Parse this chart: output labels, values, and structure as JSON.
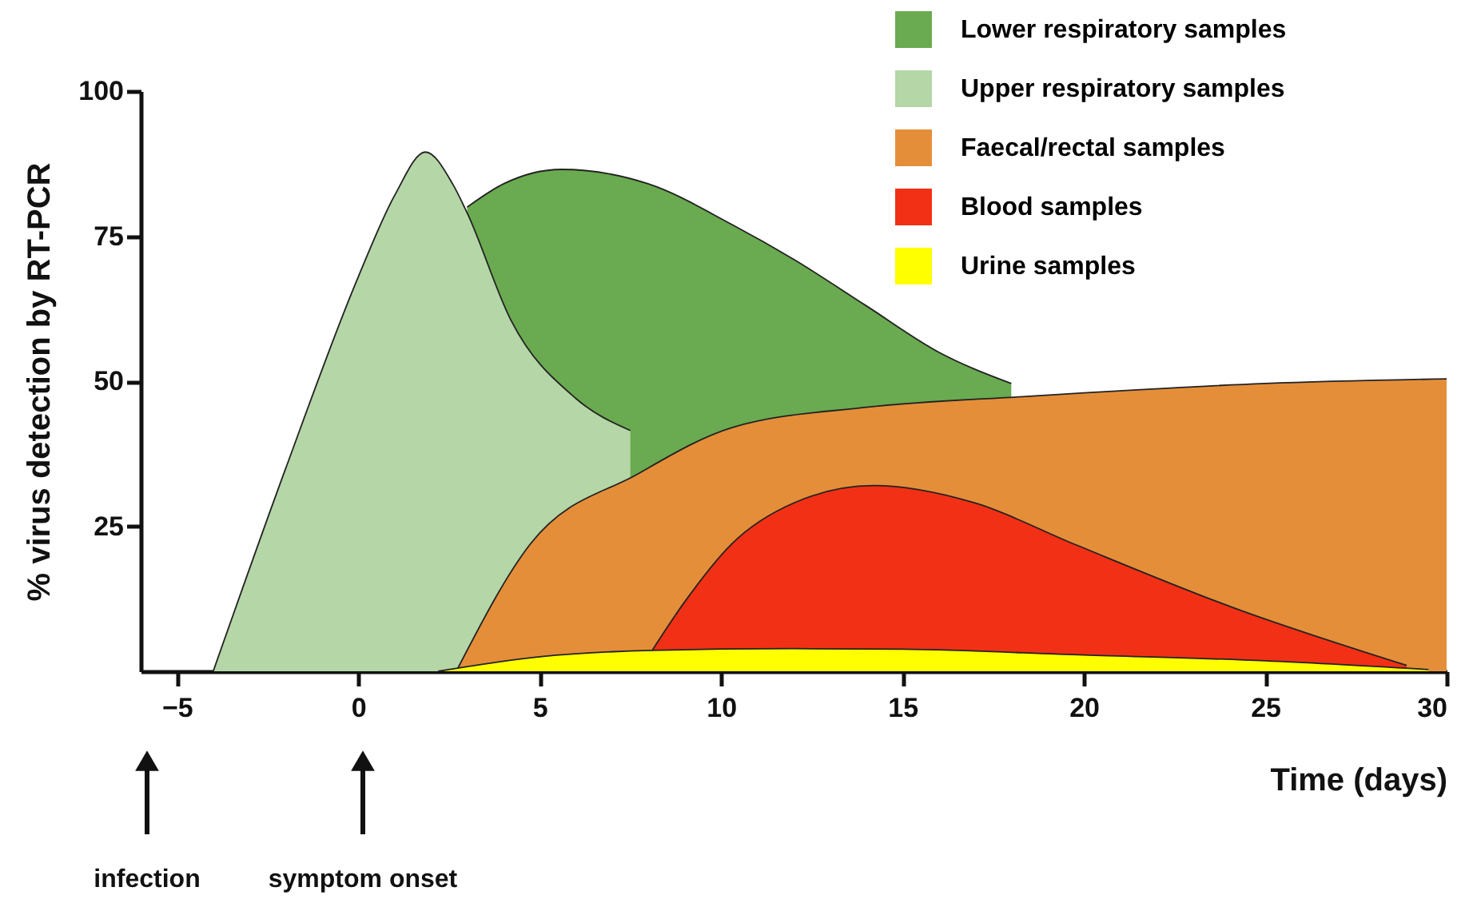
{
  "chart_data": {
    "type": "area",
    "ylabel": "% virus detection by RT-PCR",
    "xlabel": "Time (days)",
    "xlim": [
      -6,
      30
    ],
    "xticks": [
      -5,
      0,
      5,
      10,
      15,
      20,
      25,
      30
    ],
    "ylim": [
      0,
      100
    ],
    "yticks": [
      25,
      50,
      75,
      100
    ],
    "grid": false,
    "legend": "top right",
    "series": [
      {
        "name": "Lower respiratory samples",
        "color": "#6aaa50",
        "x": [
          3,
          4,
          5.6,
          8,
          10.3,
          12,
          14,
          16,
          18
        ],
        "values": [
          80,
          84,
          86.5,
          84,
          77,
          71,
          63,
          55,
          49.6
        ]
      },
      {
        "name": "Upper respiratory samples",
        "color": "#b5d6a7",
        "x": [
          -4,
          -2,
          0,
          1,
          1.85,
          2.6,
          3,
          4.2,
          6,
          7.5
        ],
        "values": [
          0,
          35,
          68,
          82,
          89.5,
          84,
          79,
          60.6,
          47,
          41.5
        ]
      },
      {
        "name": "Faecal/rectal samples",
        "color": "#e58e3a",
        "x": [
          2.7,
          4.75,
          7.7,
          10.3,
          14,
          18.5,
          25,
          30
        ],
        "values": [
          0,
          22,
          34,
          42,
          45.5,
          47.4,
          49.6,
          50.4
        ]
      },
      {
        "name": "Blood samples",
        "color": "#f23015",
        "x": [
          8.1,
          9,
          10.3,
          12,
          14.2,
          17,
          19.7,
          24.1,
          28.9
        ],
        "values": [
          3.6,
          12,
          22,
          29,
          32,
          29,
          22,
          11,
          1
        ]
      },
      {
        "name": "Urine samples",
        "color": "#ffff00",
        "x": [
          2.2,
          5,
          8.1,
          12,
          15,
          20,
          25,
          29.5
        ],
        "values": [
          0,
          2.5,
          3.6,
          3.9,
          3.8,
          2.8,
          1.8,
          0.3
        ]
      }
    ],
    "annotations": [
      "infection",
      "symptom onset"
    ]
  }
}
